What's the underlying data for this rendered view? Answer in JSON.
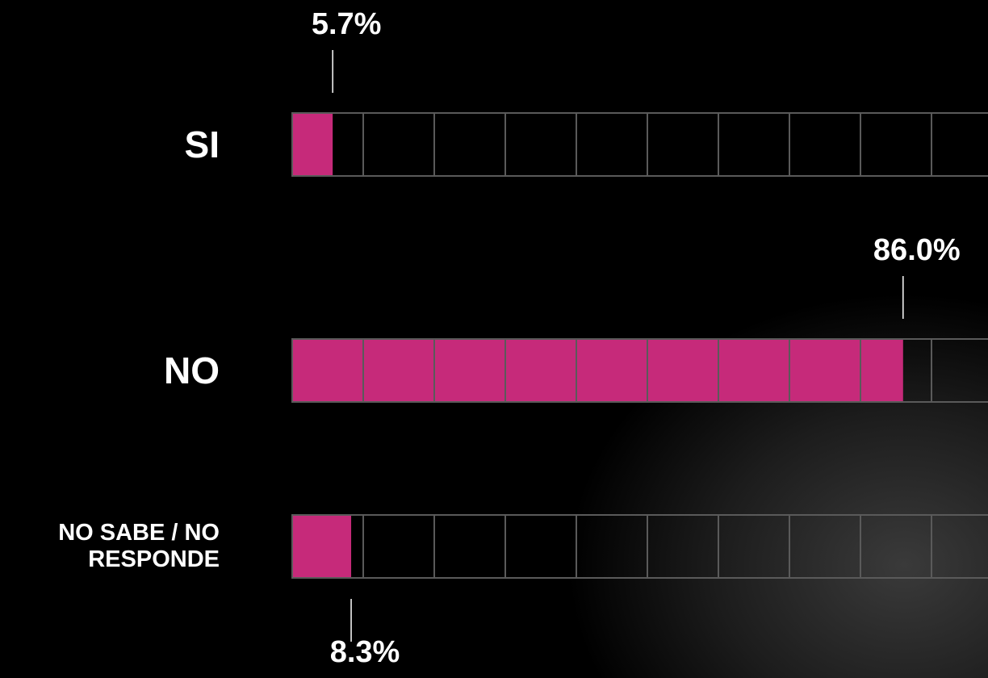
{
  "chart_data": {
    "type": "bar",
    "orientation": "horizontal",
    "categories": [
      "SI",
      "NO",
      "NO SABE / NO RESPONDE"
    ],
    "values": [
      5.7,
      86.0,
      8.3
    ],
    "value_labels": [
      "5.7%",
      "86.0%",
      "8.3%"
    ],
    "color": "#c62a7a",
    "xlim": [
      0,
      100
    ]
  }
}
